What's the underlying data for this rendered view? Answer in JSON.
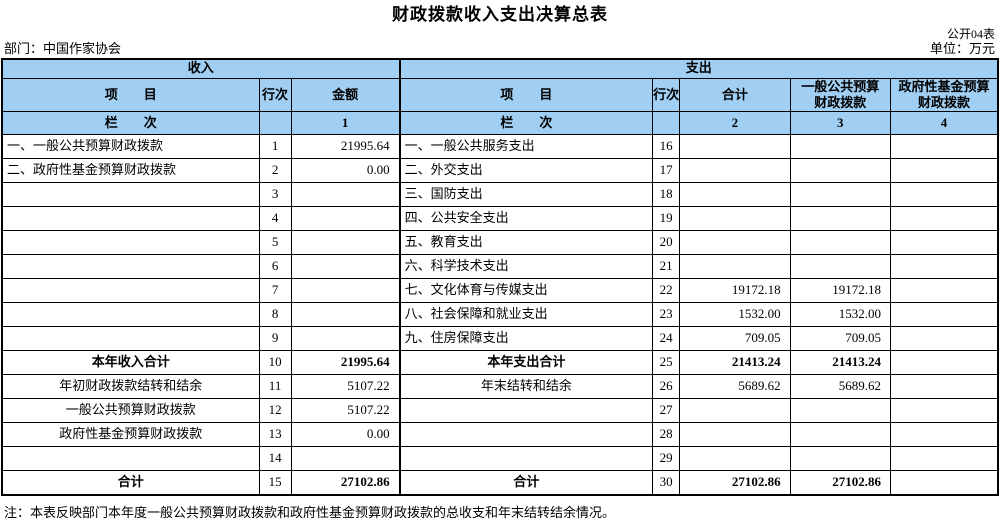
{
  "page": {
    "title": "财政拨款收入支出决算总表",
    "table_code": "公开04表",
    "department_label": "部门：中国作家协会",
    "unit_label": "单位：万元",
    "note": "注：本表反映部门本年度一般公共预算财政拨款和政府性基金预算财政拨款的总收支和年末结转结余情况。"
  },
  "colors": {
    "header_bg": "#A0CFF3",
    "border": "#000000",
    "text": "#000000"
  },
  "table": {
    "income": {
      "section_title": "收入",
      "headers": {
        "item": "项　　目",
        "row_no": "行次",
        "amount": "金额"
      },
      "column_row_label": "栏　　次",
      "column_numbers": [
        "1"
      ],
      "rows": [
        {
          "item": "一、一般公共预算财政拨款",
          "no": "1",
          "amount": "21995.64",
          "style": "left"
        },
        {
          "item": "二、政府性基金预算财政拨款",
          "no": "2",
          "amount": "0.00",
          "style": "left"
        },
        {
          "item": "",
          "no": "3",
          "amount": "",
          "style": "left"
        },
        {
          "item": "",
          "no": "4",
          "amount": "",
          "style": "left"
        },
        {
          "item": "",
          "no": "5",
          "amount": "",
          "style": "left"
        },
        {
          "item": "",
          "no": "6",
          "amount": "",
          "style": "left"
        },
        {
          "item": "",
          "no": "7",
          "amount": "",
          "style": "left"
        },
        {
          "item": "",
          "no": "8",
          "amount": "",
          "style": "left"
        },
        {
          "item": "",
          "no": "9",
          "amount": "",
          "style": "left"
        },
        {
          "item": "本年收入合计",
          "no": "10",
          "amount": "21995.64",
          "style": "total"
        },
        {
          "item": "年初财政拨款结转和结余",
          "no": "11",
          "amount": "5107.22",
          "style": "center"
        },
        {
          "item": "一般公共预算财政拨款",
          "no": "12",
          "amount": "5107.22",
          "style": "center"
        },
        {
          "item": "政府性基金预算财政拨款",
          "no": "13",
          "amount": "0.00",
          "style": "center"
        },
        {
          "item": "",
          "no": "14",
          "amount": "",
          "style": "left"
        },
        {
          "item": "合计",
          "no": "15",
          "amount": "27102.86",
          "style": "total"
        }
      ]
    },
    "expenditure": {
      "section_title": "支出",
      "headers": {
        "item": "项　　目",
        "row_no": "行次",
        "total": "合计",
        "general_line1": "一般公共预算",
        "general_line2": "财政拨款",
        "fund_line1": "政府性基金预算",
        "fund_line2": "财政拨款"
      },
      "column_row_label": "栏　　次",
      "column_numbers": [
        "2",
        "3",
        "4"
      ],
      "rows": [
        {
          "item": "一、一般公共服务支出",
          "no": "16",
          "total": "",
          "general": "",
          "fund": "",
          "style": "left"
        },
        {
          "item": "二、外交支出",
          "no": "17",
          "total": "",
          "general": "",
          "fund": "",
          "style": "left"
        },
        {
          "item": "三、国防支出",
          "no": "18",
          "total": "",
          "general": "",
          "fund": "",
          "style": "left"
        },
        {
          "item": "四、公共安全支出",
          "no": "19",
          "total": "",
          "general": "",
          "fund": "",
          "style": "left"
        },
        {
          "item": "五、教育支出",
          "no": "20",
          "total": "",
          "general": "",
          "fund": "",
          "style": "left"
        },
        {
          "item": "六、科学技术支出",
          "no": "21",
          "total": "",
          "general": "",
          "fund": "",
          "style": "left"
        },
        {
          "item": "七、文化体育与传媒支出",
          "no": "22",
          "total": "19172.18",
          "general": "19172.18",
          "fund": "",
          "style": "left"
        },
        {
          "item": "八、社会保障和就业支出",
          "no": "23",
          "total": "1532.00",
          "general": "1532.00",
          "fund": "",
          "style": "left"
        },
        {
          "item": "九、住房保障支出",
          "no": "24",
          "total": "709.05",
          "general": "709.05",
          "fund": "",
          "style": "left"
        },
        {
          "item": "本年支出合计",
          "no": "25",
          "total": "21413.24",
          "general": "21413.24",
          "fund": "",
          "style": "total"
        },
        {
          "item": "年末结转和结余",
          "no": "26",
          "total": "5689.62",
          "general": "5689.62",
          "fund": "",
          "style": "center"
        },
        {
          "item": "",
          "no": "27",
          "total": "",
          "general": "",
          "fund": "",
          "style": "left"
        },
        {
          "item": "",
          "no": "28",
          "total": "",
          "general": "",
          "fund": "",
          "style": "left"
        },
        {
          "item": "",
          "no": "29",
          "total": "",
          "general": "",
          "fund": "",
          "style": "left"
        },
        {
          "item": "合计",
          "no": "30",
          "total": "27102.86",
          "general": "27102.86",
          "fund": "",
          "style": "total"
        }
      ]
    }
  }
}
